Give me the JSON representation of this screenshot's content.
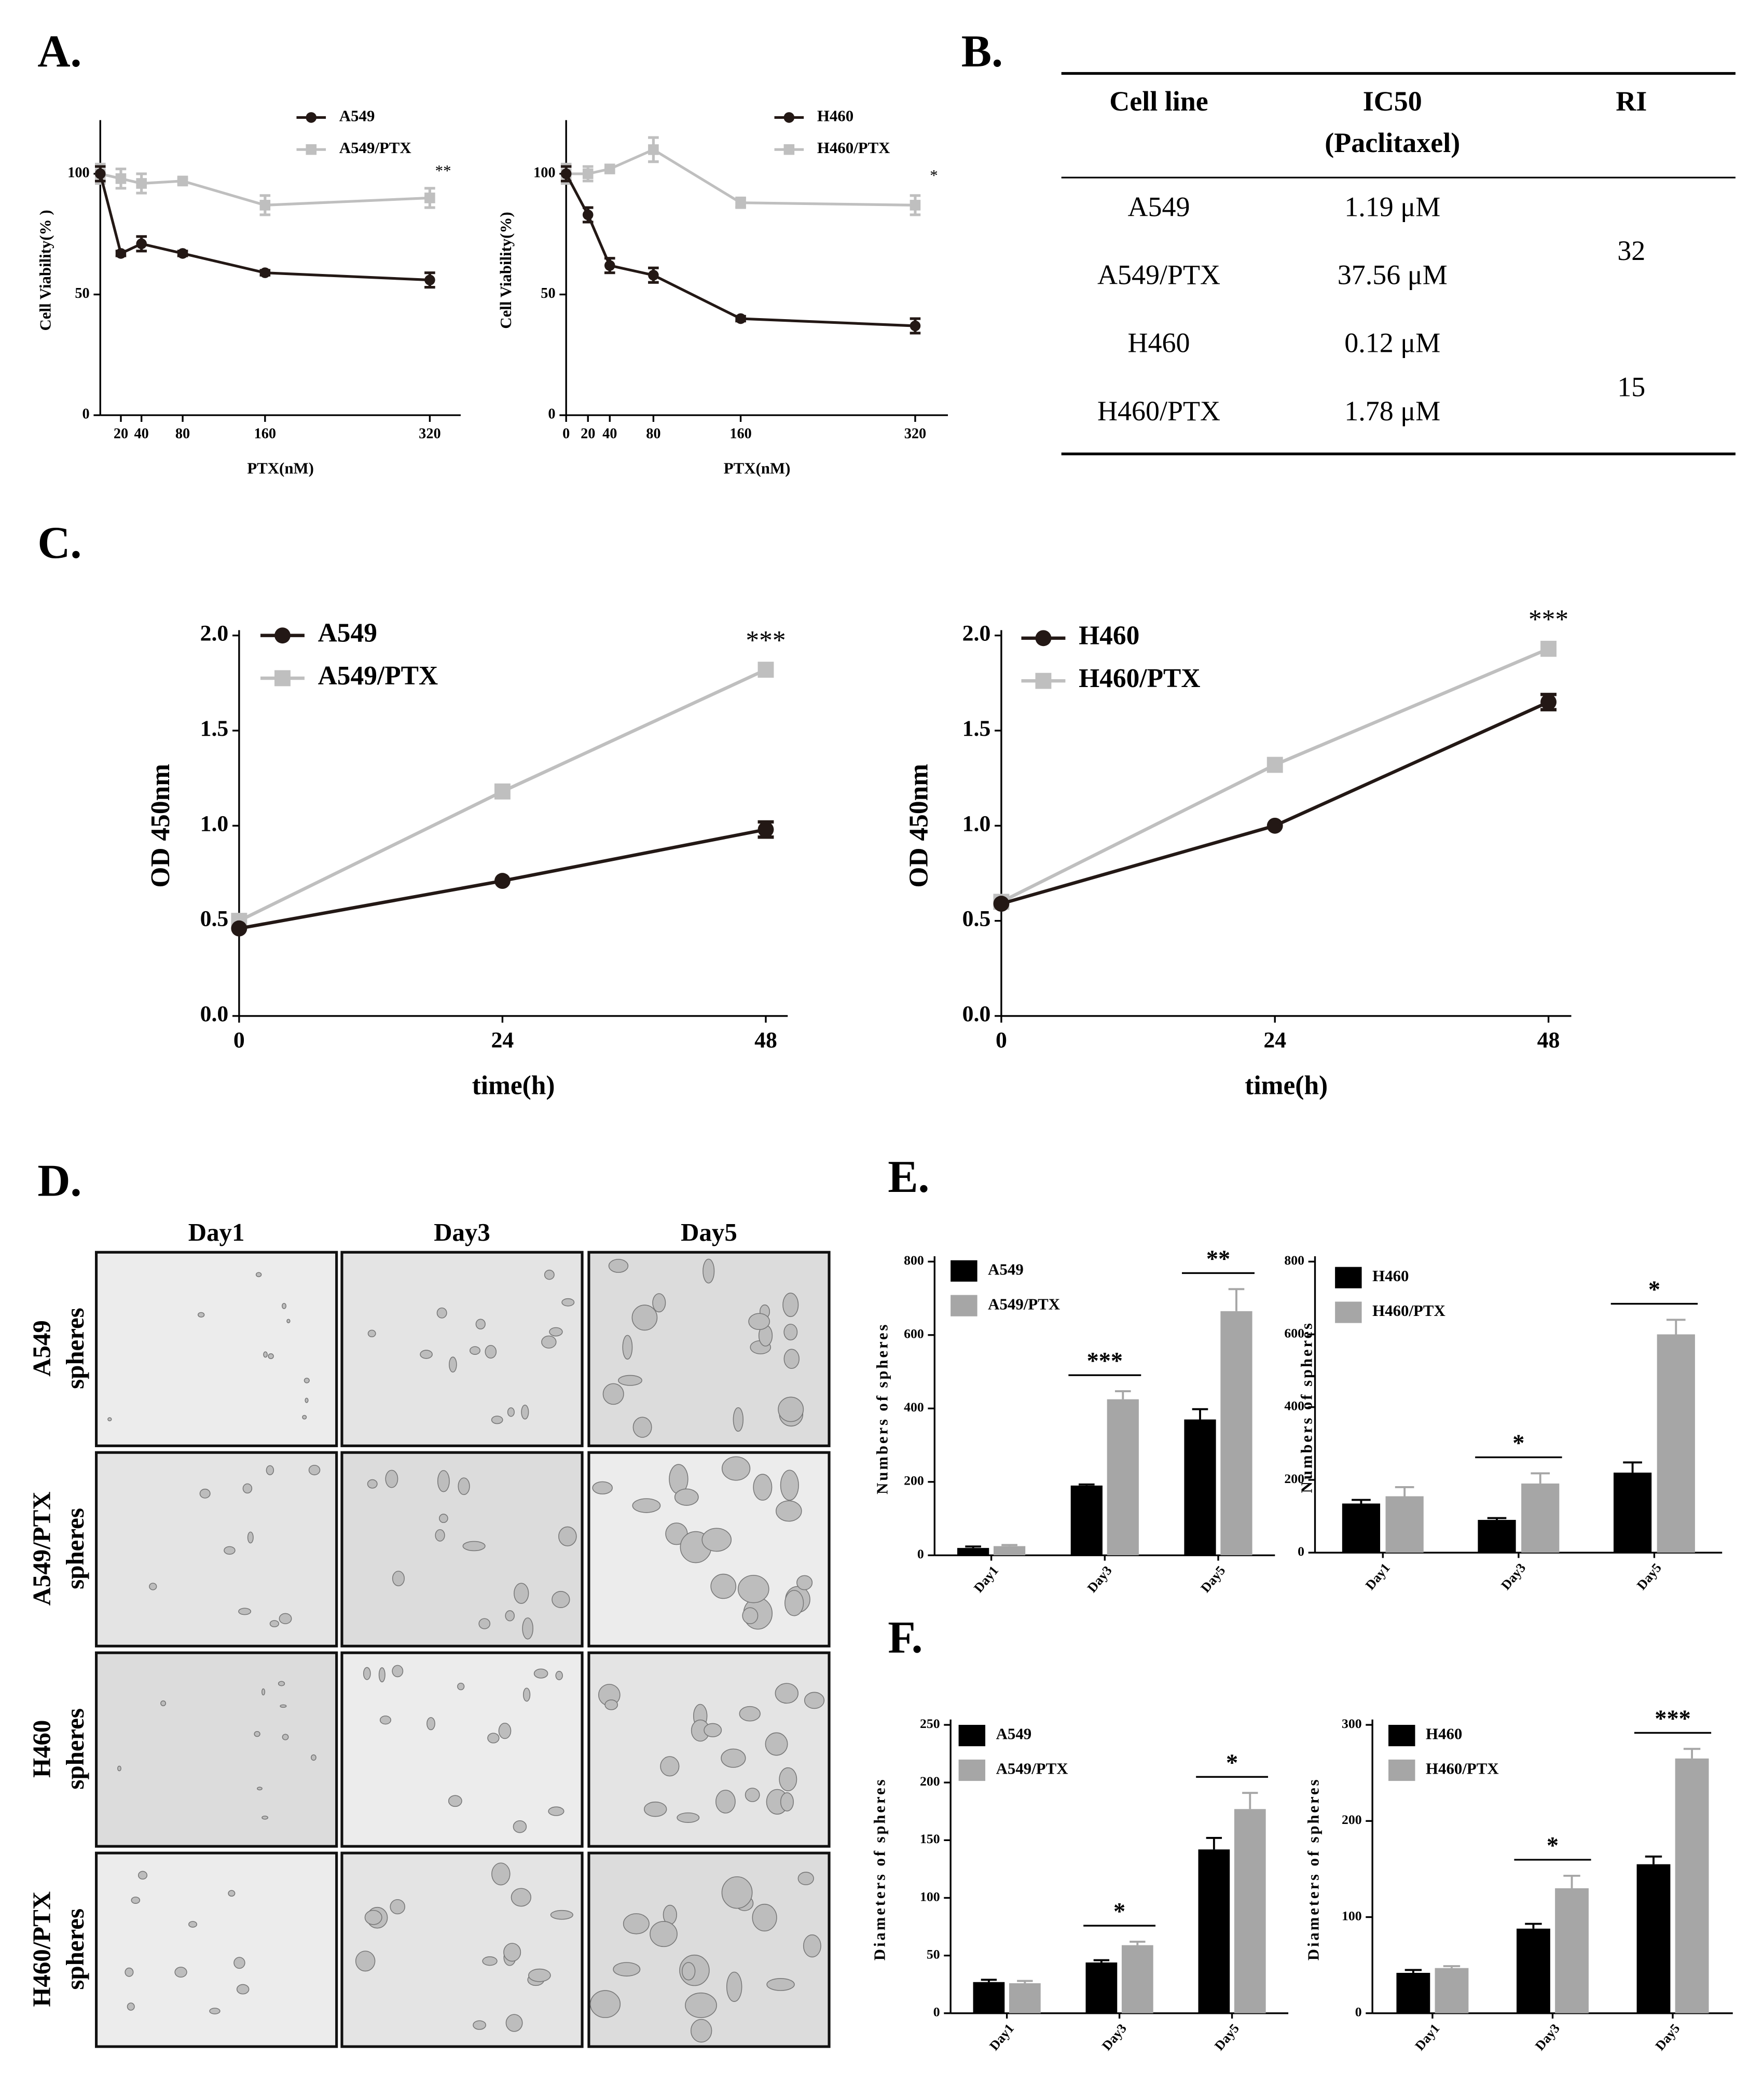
{
  "panel_labels": [
    "A.",
    "B.",
    "C.",
    "D.",
    "E.",
    "F."
  ],
  "table": {
    "header": [
      "Cell line",
      "IC50",
      "RI"
    ],
    "header_note": "(Paclitaxel)",
    "rows": [
      [
        "A549",
        "1.19 μM"
      ],
      [
        "A549/PTX",
        "37.56 μM"
      ],
      [
        "H460",
        "0.12 μM"
      ],
      [
        "H460/PTX",
        "1.78 μM"
      ]
    ],
    "ri": [
      "32",
      "15"
    ]
  },
  "micrographs": {
    "columns": [
      "Day1",
      "Day3",
      "Day5"
    ],
    "rows": [
      [
        "A549",
        "spheres"
      ],
      [
        "A549/PTX",
        "spheres"
      ],
      [
        "H460",
        "spheres"
      ],
      [
        "H460/PTX",
        "spheres"
      ]
    ]
  },
  "chart_data": [
    {
      "type": "line",
      "x": [
        0,
        20,
        40,
        80,
        160,
        320
      ],
      "xlim": [
        0,
        350
      ],
      "xticks": [
        20,
        40,
        80,
        160,
        320
      ],
      "ylim": [
        0,
        120
      ],
      "yticks": [
        0,
        50,
        100
      ],
      "xlabel": "PTX(nM)",
      "ylabel": "Cell Viability(% )",
      "legend": "upper right",
      "annotation": "**",
      "series": [
        {
          "name": "A549",
          "color": "#231815",
          "marker": "circle",
          "values": [
            100,
            67,
            71,
            67,
            59,
            56
          ],
          "errors": [
            3,
            1,
            3,
            1,
            1,
            3
          ]
        },
        {
          "name": "A549/PTX",
          "color": "#bfbfbf",
          "marker": "square",
          "values": [
            100,
            98,
            96,
            97,
            87,
            90
          ],
          "errors": [
            4,
            4,
            4,
            1,
            4,
            4
          ]
        }
      ]
    },
    {
      "type": "line",
      "x": [
        0,
        20,
        40,
        80,
        160,
        320
      ],
      "xlim": [
        0,
        350
      ],
      "xticks": [
        0,
        20,
        40,
        80,
        160,
        320
      ],
      "ylim": [
        0,
        120
      ],
      "yticks": [
        0,
        50,
        100
      ],
      "xlabel": "PTX(nM)",
      "ylabel": "Cell Viability(%)",
      "legend": "upper right",
      "annotation": "*",
      "series": [
        {
          "name": "H460",
          "color": "#231815",
          "marker": "circle",
          "values": [
            100,
            83,
            62,
            58,
            40,
            37
          ],
          "errors": [
            3,
            3,
            3,
            3,
            1,
            3
          ]
        },
        {
          "name": "H460/PTX",
          "color": "#bfbfbf",
          "marker": "square",
          "values": [
            100,
            100,
            102,
            110,
            88,
            87
          ],
          "errors": [
            4,
            3,
            1,
            5,
            2,
            4
          ]
        }
      ]
    },
    {
      "type": "line",
      "x": [
        0,
        24,
        48
      ],
      "xlim": [
        0,
        50
      ],
      "xticks": [
        0,
        24,
        48
      ],
      "ylim": [
        0,
        2
      ],
      "yticks": [
        {
          "value": 0,
          "label": "0.0"
        },
        0.5,
        {
          "value": 1,
          "label": "1.0"
        },
        1.5,
        {
          "value": 2,
          "label": "2.0"
        }
      ],
      "xlabel": "time(h)",
      "ylabel": "OD 450nm",
      "legend": "upper left",
      "annotation": "***",
      "series": [
        {
          "name": "A549",
          "color": "#231815",
          "marker": "circle",
          "values": [
            0.46,
            0.71,
            0.98
          ],
          "errors": [
            null,
            null,
            0.04
          ]
        },
        {
          "name": "A549/PTX",
          "color": "#bfbfbf",
          "marker": "square",
          "values": [
            0.5,
            1.18,
            1.82
          ],
          "errors": [
            null,
            null,
            null
          ]
        }
      ]
    },
    {
      "type": "line",
      "x": [
        0,
        24,
        48
      ],
      "xlim": [
        0,
        50
      ],
      "xticks": [
        0,
        24,
        48
      ],
      "ylim": [
        0,
        2
      ],
      "yticks": [
        {
          "value": 0,
          "label": "0.0"
        },
        0.5,
        {
          "value": 1,
          "label": "1.0"
        },
        1.5,
        {
          "value": 2,
          "label": "2.0"
        }
      ],
      "xlabel": "time(h)",
      "ylabel": "OD 450nm",
      "legend": "upper left",
      "annotation": "***",
      "series": [
        {
          "name": "H460",
          "color": "#231815",
          "marker": "circle",
          "values": [
            0.59,
            1.0,
            1.65
          ],
          "errors": [
            null,
            null,
            0.04
          ]
        },
        {
          "name": "H460/PTX",
          "color": "#bfbfbf",
          "marker": "square",
          "values": [
            0.6,
            1.32,
            1.93
          ],
          "errors": [
            null,
            null,
            null
          ]
        }
      ]
    },
    {
      "type": "bar",
      "categories": [
        "Day1",
        "Day3",
        "Day5"
      ],
      "ylim": [
        0,
        800
      ],
      "yticks": [
        0,
        200,
        400,
        600,
        800
      ],
      "ylabel": "Numbers of spheres",
      "legend": "upper left",
      "significance": [
        null,
        "***",
        "**"
      ],
      "series": [
        {
          "name": "A549",
          "color": "#000000",
          "values": [
            20,
            190,
            370
          ],
          "errors": [
            4,
            3,
            28
          ]
        },
        {
          "name": "A549/PTX",
          "color": "#a6a6a6",
          "values": [
            25,
            425,
            665
          ],
          "errors": [
            3,
            22,
            60
          ]
        }
      ]
    },
    {
      "type": "bar",
      "categories": [
        "Day1",
        "Day3",
        "Day5"
      ],
      "ylim": [
        0,
        800
      ],
      "yticks": [
        0,
        200,
        400,
        600,
        800
      ],
      "ylabel": "Numbers of spheres",
      "legend": "upper left",
      "significance": [
        null,
        "*",
        "*"
      ],
      "series": [
        {
          "name": "H460",
          "color": "#000000",
          "values": [
            135,
            90,
            220
          ],
          "errors": [
            10,
            5,
            28
          ]
        },
        {
          "name": "H460/PTX",
          "color": "#a6a6a6",
          "values": [
            155,
            190,
            600
          ],
          "errors": [
            25,
            28,
            40
          ]
        }
      ]
    },
    {
      "type": "bar",
      "categories": [
        "Day1",
        "Day3",
        "Day5"
      ],
      "ylim": [
        0,
        250
      ],
      "yticks": [
        0,
        50,
        100,
        150,
        200,
        250
      ],
      "ylabel": "Diameters of spheres",
      "legend": "upper left",
      "significance": [
        null,
        "*",
        "*"
      ],
      "series": [
        {
          "name": "A549",
          "color": "#000000",
          "values": [
            27,
            44,
            142
          ],
          "errors": [
            2,
            2,
            10
          ]
        },
        {
          "name": "A549/PTX",
          "color": "#a6a6a6",
          "values": [
            26,
            59,
            177
          ],
          "errors": [
            2,
            3,
            14
          ]
        }
      ]
    },
    {
      "type": "bar",
      "categories": [
        "Day1",
        "Day3",
        "Day5"
      ],
      "ylim": [
        0,
        300
      ],
      "yticks": [
        0,
        100,
        200,
        300
      ],
      "ylabel": "Diameters of spheres",
      "legend": "upper left",
      "significance": [
        null,
        "*",
        "***"
      ],
      "series": [
        {
          "name": "H460",
          "color": "#000000",
          "values": [
            42,
            88,
            155
          ],
          "errors": [
            3,
            5,
            8
          ]
        },
        {
          "name": "H460/PTX",
          "color": "#a6a6a6",
          "values": [
            47,
            130,
            265
          ],
          "errors": [
            2,
            13,
            10
          ]
        }
      ]
    }
  ]
}
